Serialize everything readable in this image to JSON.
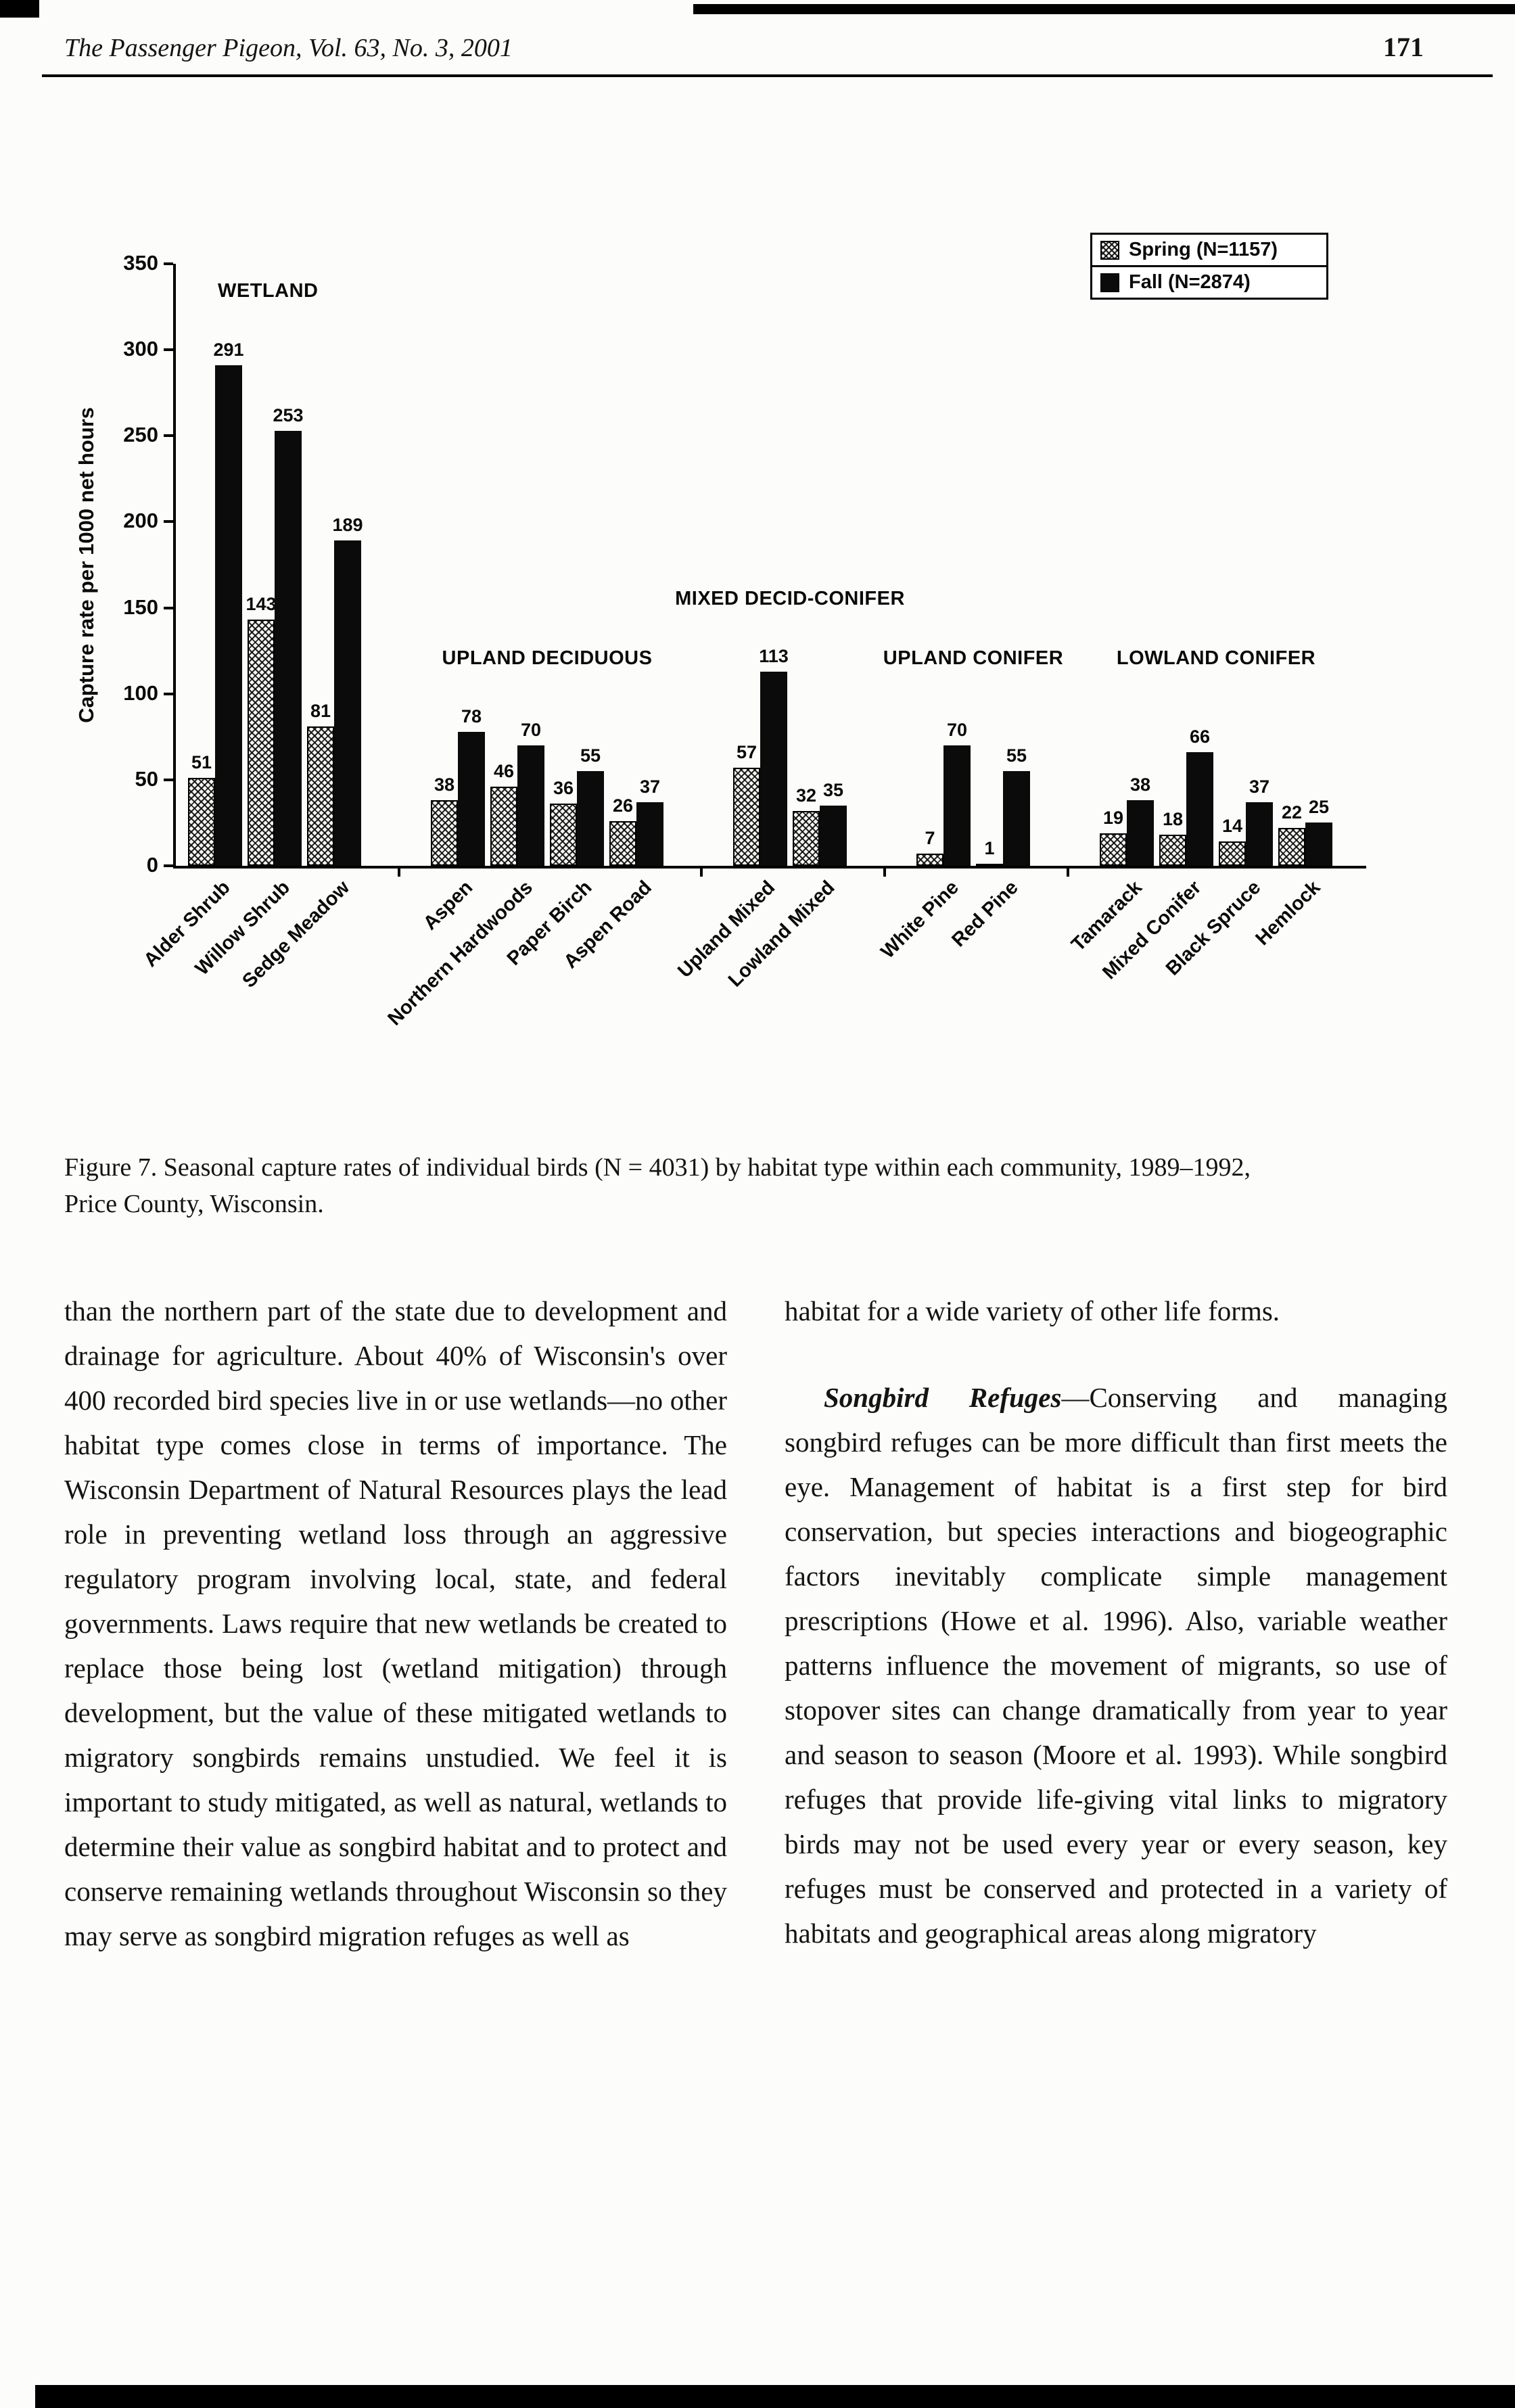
{
  "header": {
    "journal_title": "The Passenger Pigeon, Vol. 63, No. 3, 2001",
    "page_number": "171"
  },
  "figure": {
    "caption": "Figure 7. Seasonal capture rates of individual birds (N = 4031) by habitat type within each community, 1989–1992, Price County, Wisconsin."
  },
  "body": {
    "left_column": "than the northern part of the state due to development and drainage for agriculture. About 40% of Wisconsin's over 400 recorded bird species live in or use wetlands—no other habitat type comes close in terms of importance. The Wisconsin Department of Natural Resources plays the lead role in preventing wetland loss through an aggressive regulatory program involving local, state, and federal governments. Laws require that new wetlands be created to replace those being lost (wetland mitigation) through development, but the value of these mitigated wetlands to migratory songbirds remains unstudied. We feel it is important to study mitigated, as well as natural, wetlands to determine their value as songbird habitat and to protect and conserve remaining wetlands throughout Wisconsin so they may serve as songbird migration refuges as well as",
    "right_p1": "habitat for a wide variety of other life forms.",
    "songbird_heading": "Songbird Refuges",
    "right_p2": "—Conserving and managing songbird refuges can be more difficult than first meets the eye. Management of habitat is a first step for bird conservation, but species interactions and biogeographic factors inevitably complicate simple management prescriptions (Howe et al. 1996). Also, variable weather patterns influence the movement of migrants, so use of stopover sites can change dramatically from year to year and season to season (Moore et al. 1993). While songbird refuges that provide life-giving vital links to migratory birds may not be used every year or every season, key refuges must be conserved and protected in a variety of habitats and geographical areas along migratory"
  },
  "chart_data": {
    "type": "bar",
    "title": "",
    "xlabel": "",
    "ylabel": "Capture rate per 1000 net hours",
    "ylim": [
      0,
      350
    ],
    "yticks": [
      0,
      50,
      100,
      150,
      200,
      250,
      300,
      350
    ],
    "grid": false,
    "legend_position": "top-right",
    "legend": [
      {
        "label": "Spring (N=1157)",
        "pattern": "crosshatch"
      },
      {
        "label": "Fall (N=2874)",
        "pattern": "solid-black"
      }
    ],
    "bar_colors": {
      "spring": "crosshatch-black-on-white",
      "fall": "#0b0b0b"
    },
    "groups": [
      {
        "label": "WETLAND",
        "categories": [
          "Alder Shrub",
          "Willow Shrub",
          "Sedge Meadow"
        ],
        "spring": [
          51,
          143,
          81
        ],
        "fall": [
          291,
          253,
          189
        ]
      },
      {
        "label": "UPLAND DECIDUOUS",
        "categories": [
          "Aspen",
          "Northern Hardwoods",
          "Paper Birch",
          "Aspen Road"
        ],
        "spring": [
          38,
          46,
          36,
          26
        ],
        "fall": [
          78,
          70,
          55,
          37
        ]
      },
      {
        "label": "MIXED DECID-CONIFER",
        "categories": [
          "Upland Mixed",
          "Lowland Mixed"
        ],
        "spring": [
          57,
          32
        ],
        "fall": [
          113,
          35
        ]
      },
      {
        "label": "UPLAND CONIFER",
        "categories": [
          "White Pine",
          "Red Pine"
        ],
        "spring": [
          7,
          1
        ],
        "fall": [
          70,
          55
        ]
      },
      {
        "label": "LOWLAND CONIFER",
        "categories": [
          "Tamarack",
          "Mixed Conifer",
          "Black Spruce",
          "Hemlock"
        ],
        "spring": [
          19,
          18,
          14,
          22
        ],
        "fall": [
          38,
          66,
          37,
          25
        ]
      }
    ]
  }
}
